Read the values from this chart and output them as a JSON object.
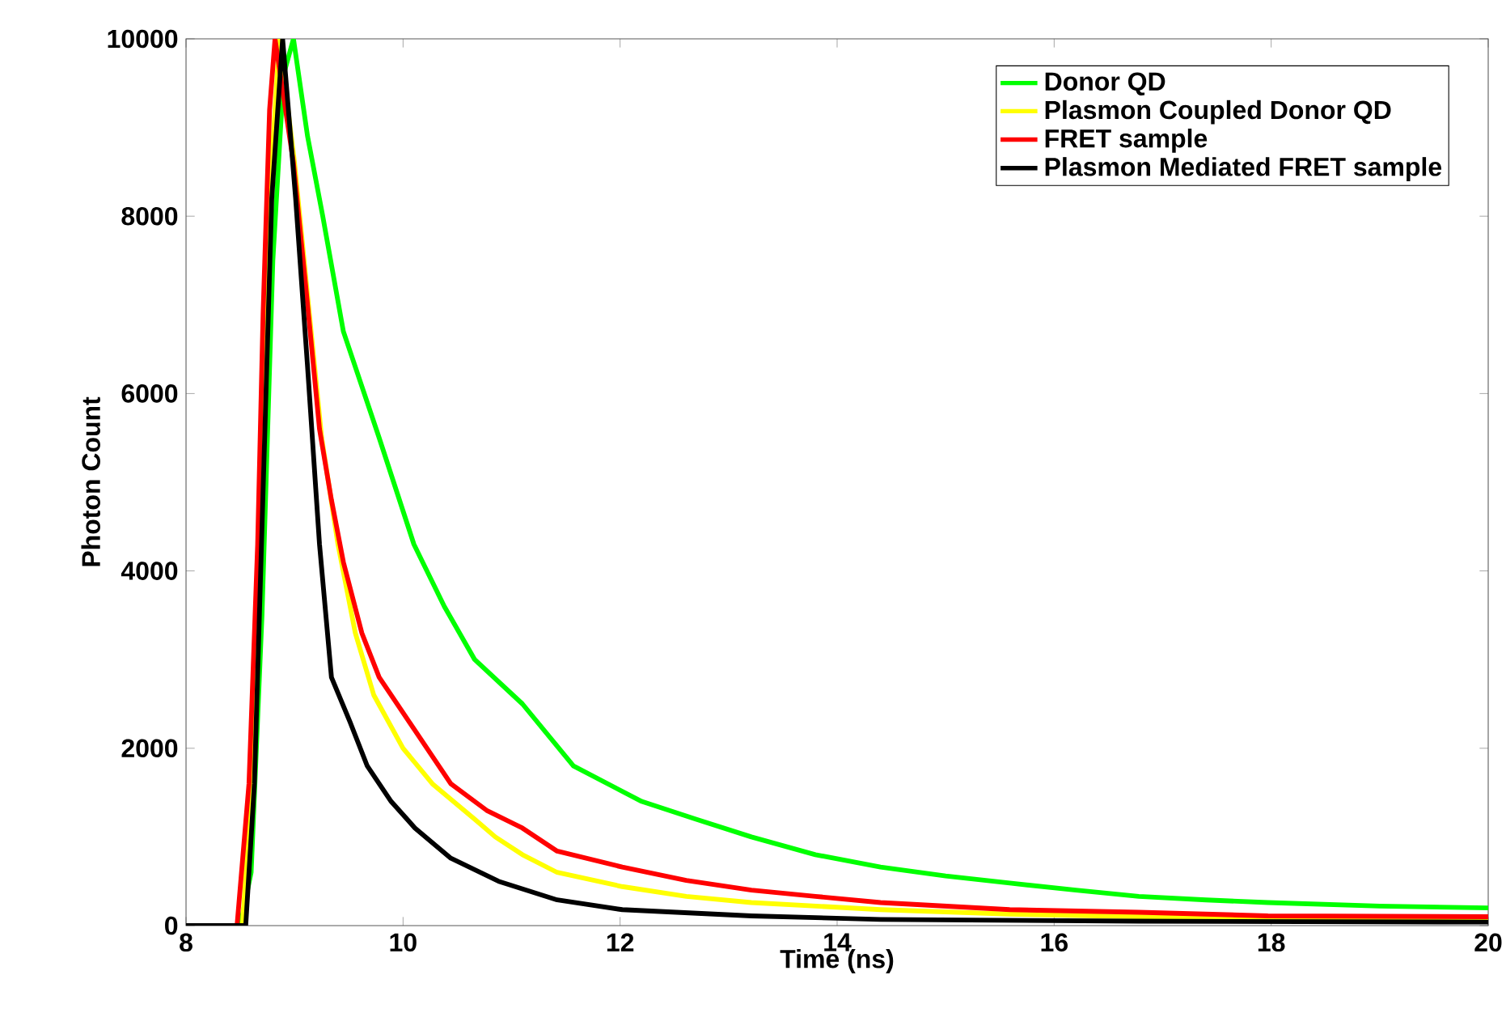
{
  "chart_data": {
    "type": "line",
    "xlabel": "Time (ns)",
    "ylabel": "Photon Count",
    "xlim": [
      8,
      20
    ],
    "ylim": [
      0,
      10000
    ],
    "xticks": [
      8,
      10,
      12,
      14,
      16,
      18,
      20
    ],
    "yticks": [
      0,
      2000,
      4000,
      6000,
      8000,
      10000
    ],
    "legend": "top right",
    "line_style": "solid",
    "series": [
      {
        "name": "Donor QD",
        "color": "#00ff00",
        "x": [
          8,
          8.5,
          8.6,
          8.7,
          8.8,
          8.9,
          8.99,
          9.12,
          9.26,
          9.45,
          9.78,
          10.1,
          10.38,
          10.66,
          11.1,
          11.57,
          12.2,
          12.7,
          13.21,
          13.8,
          14.4,
          15,
          15.59,
          16.2,
          16.78,
          17.4,
          17.97,
          19,
          20
        ],
        "values": [
          0,
          0,
          600,
          3500,
          7500,
          9600,
          10000,
          8900,
          8000,
          6700,
          5500,
          4300,
          3600,
          3000,
          2500,
          1800,
          1400,
          1200,
          1000,
          800,
          660,
          560,
          480,
          400,
          330,
          290,
          260,
          220,
          200
        ]
      },
      {
        "name": "Plasmon Coupled Donor QD",
        "color": "#ffff00",
        "x": [
          8,
          8.52,
          8.6,
          8.7,
          8.8,
          8.86,
          9.0,
          9.12,
          9.25,
          9.4,
          9.56,
          9.73,
          10,
          10.27,
          10.66,
          10.85,
          11.1,
          11.42,
          12.02,
          12.61,
          13.21,
          14.4,
          15.59,
          16.78,
          18,
          20
        ],
        "values": [
          0,
          0,
          1500,
          null,
          8800,
          10000,
          8600,
          7100,
          5500,
          4300,
          3300,
          2600,
          2000,
          1600,
          1200,
          1000,
          800,
          600,
          440,
          330,
          260,
          180,
          130,
          100,
          80,
          80
        ]
      },
      {
        "name": "FRET sample",
        "color": "#ff0000",
        "x": [
          8,
          8.47,
          8.58,
          8.66,
          8.71,
          8.77,
          8.82,
          8.99,
          9.12,
          9.23,
          9.34,
          9.45,
          9.62,
          9.78,
          10,
          10.22,
          10.44,
          10.77,
          11.1,
          11.42,
          12.02,
          12.61,
          13.21,
          13.8,
          14.4,
          15.59,
          16.78,
          17.97,
          20
        ],
        "values": [
          0,
          0,
          1600,
          4300,
          6900,
          9200,
          10000,
          8600,
          7000,
          5600,
          4800,
          4100,
          3300,
          2800,
          2400,
          2000,
          1600,
          1300,
          1100,
          840,
          660,
          510,
          400,
          330,
          260,
          180,
          150,
          110,
          100
        ]
      },
      {
        "name": "Plasmon Mediated FRET sample",
        "color": "#000000",
        "x": [
          8,
          8.55,
          8.63,
          8.71,
          8.79,
          8.89,
          9.01,
          9.12,
          9.23,
          9.34,
          9.51,
          9.67,
          9.89,
          10.11,
          10.44,
          10.88,
          11.42,
          12.02,
          13.21,
          14.4,
          16.78,
          20
        ],
        "values": [
          0,
          0,
          1600,
          4900,
          8200,
          10000,
          8200,
          6300,
          4300,
          2800,
          2300,
          1800,
          1400,
          1100,
          760,
          500,
          290,
          180,
          110,
          70,
          50,
          40
        ]
      }
    ]
  }
}
